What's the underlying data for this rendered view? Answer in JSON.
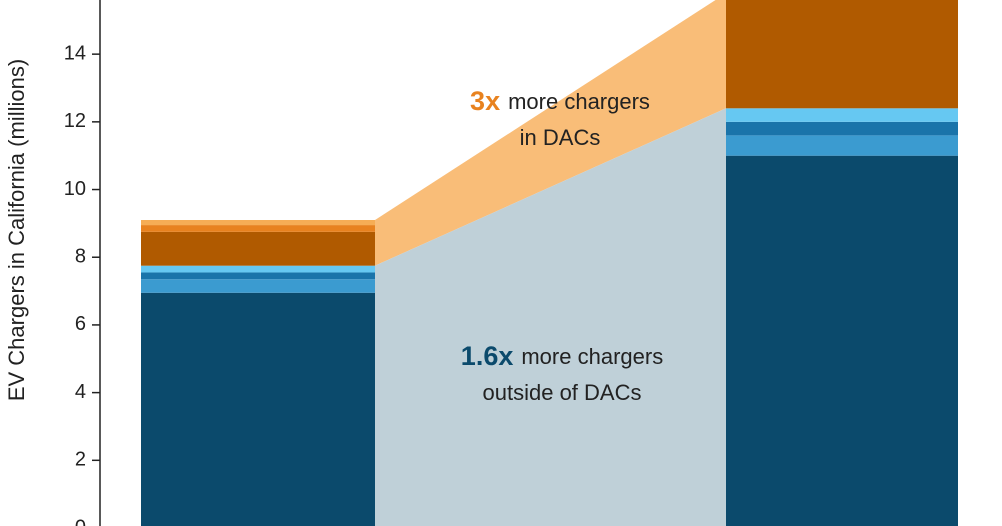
{
  "chart_data": {
    "type": "stacked-bar",
    "y_label": "EV Chargers in California (millions)",
    "categories": [
      null,
      null
    ],
    "series": [
      {
        "name": null,
        "color": "#0b4a6c",
        "values": [
          6.95,
          11.0
        ]
      },
      {
        "name": null,
        "color": "#3b9bd0",
        "values": [
          0.4,
          0.6
        ]
      },
      {
        "name": null,
        "color": "#1a74aa",
        "values": [
          0.2,
          0.4
        ]
      },
      {
        "name": null,
        "color": "#66c8f2",
        "values": [
          0.2,
          0.4
        ]
      },
      {
        "name": null,
        "color": "#b05a00",
        "values": [
          1.0,
          3.4
        ]
      },
      {
        "name": null,
        "color": "#e8821f",
        "values": [
          0.2,
          0
        ]
      },
      {
        "name": null,
        "color": "#f6ad55",
        "values": [
          0.15,
          0
        ]
      }
    ],
    "connector_colors": {
      "lower": "#bfd0d8",
      "upper": "#f9bd78"
    },
    "ylim": [
      0,
      15.6
    ],
    "yticks": [
      0,
      2,
      4,
      6,
      8,
      10,
      12,
      14
    ],
    "annotations": [
      {
        "highlight": "3x",
        "text": "more chargers",
        "line2": "in DACs",
        "color": "#e8821f"
      },
      {
        "highlight": "1.6x",
        "text": "more chargers",
        "line2": "outside of DACs",
        "color": "#0b4a6c"
      }
    ]
  }
}
